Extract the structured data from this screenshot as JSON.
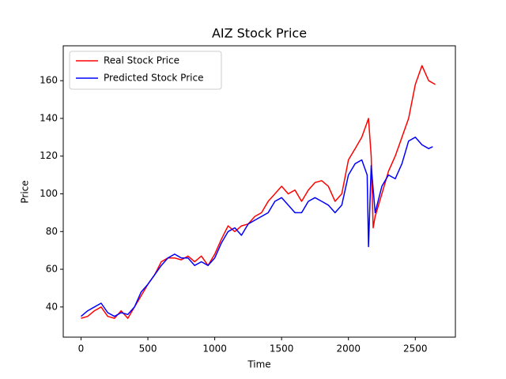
{
  "chart_data": {
    "type": "line",
    "title": "AIZ Stock Price",
    "x_label": "Time",
    "y_label": "Price",
    "series": [
      {
        "name": "Real Stock Price",
        "color": "#ff0000",
        "x": [
          0,
          50,
          100,
          150,
          200,
          250,
          300,
          350,
          400,
          450,
          500,
          550,
          600,
          650,
          700,
          750,
          800,
          850,
          900,
          950,
          1000,
          1050,
          1100,
          1150,
          1200,
          1250,
          1300,
          1350,
          1400,
          1450,
          1500,
          1550,
          1600,
          1650,
          1700,
          1750,
          1800,
          1850,
          1900,
          1950,
          2000,
          2050,
          2100,
          2150,
          2170,
          2185,
          2200,
          2250,
          2300,
          2350,
          2400,
          2450,
          2500,
          2550,
          2600,
          2650
        ],
        "values": [
          34,
          35,
          38,
          40,
          35,
          34,
          38,
          34,
          40,
          46,
          52,
          57,
          64,
          66,
          66,
          65,
          67,
          64,
          67,
          62,
          68,
          76,
          83,
          80,
          83,
          84,
          88,
          90,
          96,
          100,
          104,
          100,
          102,
          96,
          102,
          106,
          107,
          104,
          96,
          100,
          118,
          124,
          130,
          140,
          120,
          82,
          88,
          100,
          112,
          120,
          130,
          140,
          158,
          168,
          160,
          158
        ]
      },
      {
        "name": "Predicted Stock Price",
        "color": "#0000ff",
        "x": [
          0,
          50,
          100,
          150,
          200,
          250,
          300,
          350,
          400,
          450,
          500,
          550,
          600,
          650,
          700,
          750,
          800,
          850,
          900,
          950,
          1000,
          1050,
          1100,
          1150,
          1200,
          1250,
          1300,
          1350,
          1400,
          1450,
          1500,
          1550,
          1600,
          1650,
          1700,
          1750,
          1800,
          1850,
          1900,
          1950,
          2000,
          2050,
          2100,
          2140,
          2150,
          2170,
          2200,
          2250,
          2300,
          2350,
          2400,
          2450,
          2500,
          2550,
          2600,
          2630
        ],
        "values": [
          35,
          38,
          40,
          42,
          37,
          35,
          37,
          36,
          40,
          48,
          52,
          57,
          62,
          66,
          68,
          66,
          66,
          62,
          64,
          62,
          66,
          74,
          80,
          82,
          78,
          84,
          86,
          88,
          90,
          96,
          98,
          94,
          90,
          90,
          96,
          98,
          96,
          94,
          90,
          94,
          110,
          116,
          118,
          110,
          72,
          115,
          90,
          104,
          110,
          108,
          116,
          128,
          130,
          126,
          124,
          125
        ]
      }
    ],
    "xlim": [
      -133,
      2800
    ],
    "xticks": [
      0,
      500,
      1000,
      1500,
      2000,
      2500
    ],
    "ylim": [
      24,
      178.5
    ],
    "yticks": [
      40,
      60,
      80,
      100,
      120,
      140,
      160
    ],
    "grid": false,
    "legend": "upper left"
  }
}
